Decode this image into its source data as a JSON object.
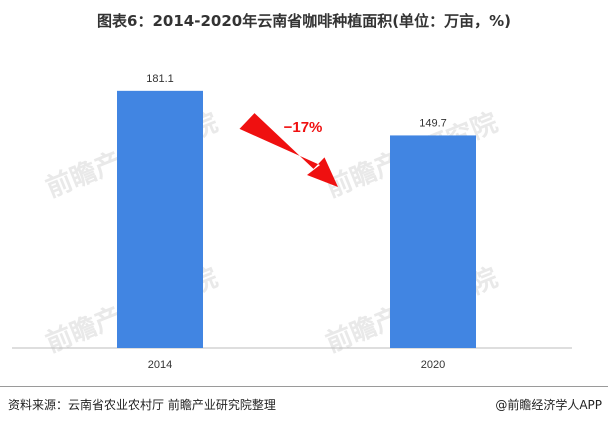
{
  "title": "图表6：2014-2020年云南省咖啡种植面积(单位：万亩，%)",
  "footer": {
    "source": "资料来源：云南省农业农村厅 前瞻产业研究院整理",
    "credit": "@前瞻经济学人APP"
  },
  "watermark": "前瞻产业研究院",
  "colors": {
    "bar": "#4185e2",
    "arrow": "#ef1010",
    "axis": "#bdbdbd"
  },
  "chart_data": {
    "type": "bar",
    "title": "图表6：2014-2020年云南省咖啡种植面积(单位：万亩，%)",
    "categories": [
      "2014",
      "2020"
    ],
    "values": [
      181.1,
      149.7
    ],
    "value_labels": [
      "181.1",
      "149.7"
    ],
    "ylim": [
      0,
      200
    ],
    "grid": false,
    "annotation": {
      "text": "−17%",
      "type": "down-arrow",
      "from": "2014",
      "to": "2020"
    }
  }
}
